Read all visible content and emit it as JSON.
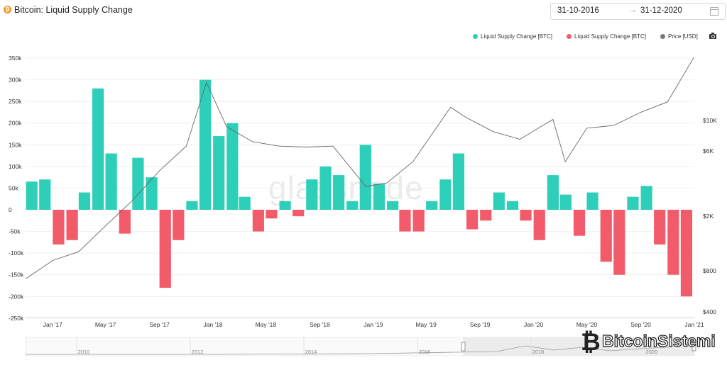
{
  "header": {
    "logo_glyph": "₿",
    "title": "Bitcoin: Liquid Supply Change",
    "date_from": "31-10-2016",
    "date_arrow": "→",
    "date_to": "31-12-2020",
    "calendar_icon": "calendar-icon"
  },
  "legend": [
    {
      "label": "Liquid Supply Change [BTC]",
      "color": "#2ecfb8"
    },
    {
      "label": "Liquid Supply Change [BTC]",
      "color": "#f25c6a"
    },
    {
      "label": "Price [USD]",
      "color": "#7a7a7a"
    }
  ],
  "watermark": "glassnode",
  "brand": {
    "b": "₿",
    "text": "BitcoinSistemi"
  },
  "navigator_labels": [
    "2010",
    "2012",
    "2014",
    "2016",
    "2018",
    "2020"
  ],
  "chart_data": {
    "type": "bar",
    "title": "Bitcoin: Liquid Supply Change",
    "x_tick_labels": [
      "Jan '17",
      "May '17",
      "Sep '17",
      "Jan '18",
      "May '18",
      "Sep '18",
      "Jan '19",
      "May '19",
      "Sep '19",
      "Jan '20",
      "May '20",
      "Sep '20",
      "Jan '21"
    ],
    "y_left_ticks": [
      "350k",
      "300k",
      "250k",
      "200k",
      "150k",
      "100k",
      "50k",
      "0",
      "-50k",
      "-100k",
      "-150k",
      "-200k",
      "-250k"
    ],
    "y_left_range": [
      -250000,
      350000
    ],
    "y_right_ticks": [
      "$10K",
      "$6K",
      "$2K",
      "$800",
      "$400"
    ],
    "y_right_scale": "log",
    "series": [
      {
        "name": "Liquid Supply Change [BTC]",
        "type": "bar",
        "color_positive": "#2ecfb8",
        "color_negative": "#f25c6a",
        "x": [
          "2016-11-01",
          "2016-12-01",
          "2017-01-01",
          "2017-02-01",
          "2017-03-01",
          "2017-04-01",
          "2017-05-01",
          "2017-06-01",
          "2017-07-01",
          "2017-08-01",
          "2017-09-01",
          "2017-10-01",
          "2017-11-01",
          "2017-12-01",
          "2018-01-01",
          "2018-02-01",
          "2018-03-01",
          "2018-04-01",
          "2018-05-01",
          "2018-06-01",
          "2018-07-01",
          "2018-08-01",
          "2018-09-01",
          "2018-10-01",
          "2018-11-01",
          "2018-12-01",
          "2019-01-01",
          "2019-02-01",
          "2019-03-01",
          "2019-04-01",
          "2019-05-01",
          "2019-06-01",
          "2019-07-01",
          "2019-08-01",
          "2019-09-01",
          "2019-10-01",
          "2019-11-01",
          "2019-12-01",
          "2020-01-01",
          "2020-02-01",
          "2020-03-01",
          "2020-04-01",
          "2020-05-01",
          "2020-06-01",
          "2020-07-01",
          "2020-08-01",
          "2020-09-01",
          "2020-10-01",
          "2020-11-01",
          "2020-12-01"
        ],
        "values": [
          65000,
          70000,
          -80000,
          -70000,
          40000,
          280000,
          130000,
          -55000,
          120000,
          75000,
          -180000,
          -70000,
          20000,
          300000,
          170000,
          200000,
          30000,
          -50000,
          -20000,
          20000,
          -15000,
          70000,
          100000,
          80000,
          20000,
          150000,
          60000,
          20000,
          -50000,
          -50000,
          20000,
          70000,
          130000,
          -45000,
          -25000,
          40000,
          20000,
          -25000,
          -70000,
          80000,
          35000,
          -60000,
          40000,
          -120000,
          -150000,
          30000,
          55000,
          -80000,
          -150000,
          -200000
        ]
      },
      {
        "name": "Price [USD]",
        "type": "line",
        "color": "#7a7a7a",
        "x": [
          "2016-11-01",
          "2017-01-01",
          "2017-03-01",
          "2017-05-01",
          "2017-07-01",
          "2017-09-01",
          "2017-11-01",
          "2017-12-17",
          "2018-02-01",
          "2018-04-01",
          "2018-06-01",
          "2018-08-01",
          "2018-10-01",
          "2018-12-15",
          "2019-02-01",
          "2019-04-01",
          "2019-06-26",
          "2019-08-01",
          "2019-10-01",
          "2019-12-01",
          "2020-02-14",
          "2020-03-13",
          "2020-05-01",
          "2020-07-01",
          "2020-09-01",
          "2020-11-01",
          "2020-12-31"
        ],
        "values": [
          700,
          950,
          1100,
          1700,
          2600,
          4300,
          6500,
          19000,
          9000,
          7000,
          6500,
          6400,
          6500,
          3300,
          3500,
          5000,
          12500,
          10500,
          8300,
          7300,
          10200,
          5000,
          8800,
          9200,
          11500,
          13700,
          29000
        ]
      }
    ]
  }
}
